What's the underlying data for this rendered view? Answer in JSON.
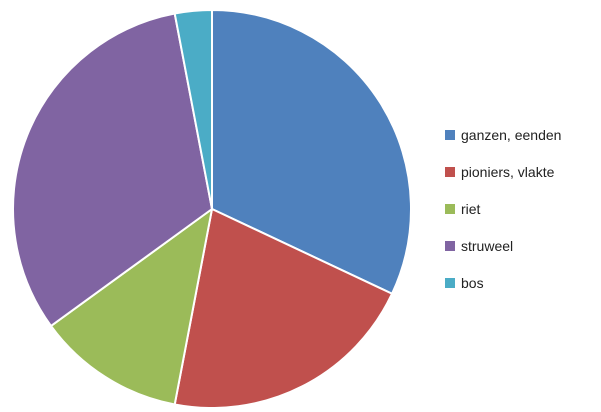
{
  "chart_data": {
    "type": "pie",
    "categories": [
      "ganzen, eenden",
      "pioniers, vlakte",
      "riet",
      "struweel",
      "bos"
    ],
    "values": [
      32,
      21,
      12,
      32,
      3
    ],
    "colors": [
      "#4f81bd",
      "#c0504d",
      "#9bbb59",
      "#8064a2",
      "#4bacc6"
    ],
    "title": "",
    "legend_position": "right",
    "start_angle_deg": -90,
    "direction": "clockwise"
  }
}
